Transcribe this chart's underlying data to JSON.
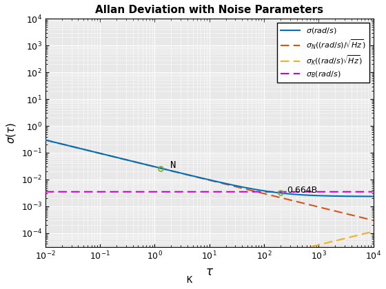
{
  "title": "Allan Deviation with Noise Parameters",
  "xlabel": "$\\tau$",
  "ylabel": "$\\sigma(\\tau)$",
  "tau_min": 0.01,
  "tau_max": 10000,
  "ylim_min": 3e-05,
  "ylim_max": 10000.0,
  "N": 0.03,
  "K": 2e-06,
  "B": 0.0035,
  "legend_labels": [
    "$\\sigma(rad/s)$",
    "$\\sigma_N((rad/s)/\\sqrt{Hz})$",
    "$\\sigma_K((rad/s)\\sqrt{Hz})$",
    "$\\sigma_B(rad/s)$"
  ],
  "colors": {
    "sigma": "#0072BD",
    "sigma_N": "#D95319",
    "sigma_K": "#EDB120",
    "sigma_B": "#CC00CC"
  },
  "annotation_N_tau": 1.3,
  "annotation_K_tau": 2.5,
  "annotation_B_tau": 200,
  "background_color": "#e8e8e8",
  "grid_color": "#ffffff"
}
